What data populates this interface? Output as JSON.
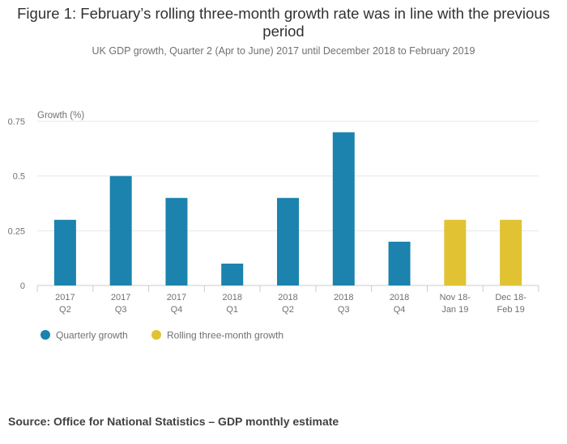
{
  "title": "Figure 1: February’s rolling three-month growth rate was in line with the previous period",
  "subtitle": "UK GDP growth, Quarter 2 (Apr to June) 2017 until December 2018 to February 2019",
  "source": "Source: Office for National Statistics – GDP monthly estimate",
  "colors": {
    "quarterly": "#1b83ad",
    "rolling": "#e1c233",
    "grid": "#e6e6e6",
    "axis": "#cccccc",
    "text": "#707071"
  },
  "chart_data": {
    "type": "bar",
    "title": "Figure 1: February’s rolling three-month growth rate was in line with the previous period",
    "ylabel": "Growth (%)",
    "xlabel": "",
    "ylim": [
      0,
      0.75
    ],
    "yticks": [
      "0.75",
      "0.5",
      "0.25",
      "0"
    ],
    "ytick_values": [
      0.75,
      0.5,
      0.25,
      0
    ],
    "categories": [
      [
        "2017",
        "Q2"
      ],
      [
        "2017",
        "Q3"
      ],
      [
        "2017",
        "Q4"
      ],
      [
        "2018",
        "Q1"
      ],
      [
        "2018",
        "Q2"
      ],
      [
        "2018",
        "Q3"
      ],
      [
        "2018",
        "Q4"
      ],
      [
        "Nov 18-",
        "Jan 19"
      ],
      [
        "Dec 18-",
        "Feb 19"
      ]
    ],
    "series": [
      {
        "name": "Quarterly growth",
        "color": "#1b83ad",
        "values": [
          0.3,
          0.5,
          0.4,
          0.1,
          0.4,
          0.7,
          0.2,
          null,
          null
        ]
      },
      {
        "name": "Rolling three-month growth",
        "color": "#e1c233",
        "values": [
          null,
          null,
          null,
          null,
          null,
          null,
          null,
          0.3,
          0.3
        ]
      }
    ],
    "legend": [
      "Quarterly growth",
      "Rolling three-month growth"
    ]
  }
}
